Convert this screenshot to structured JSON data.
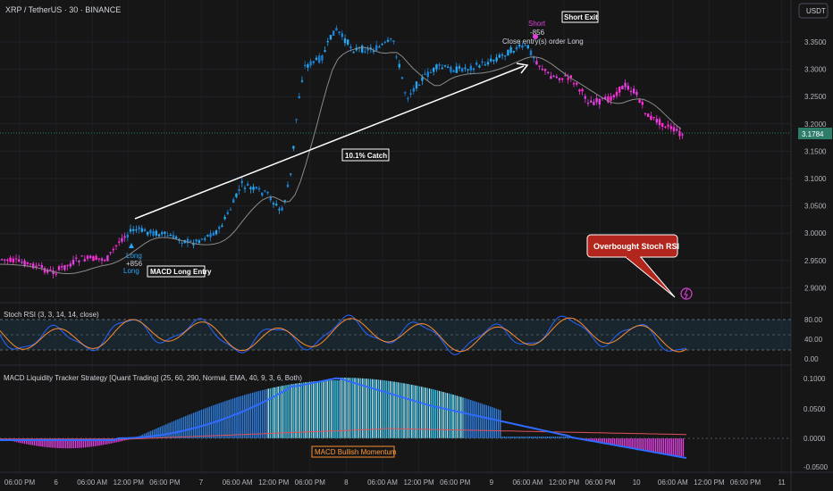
{
  "header": {
    "symbol_title": "XRP / TetherUS · 30 · BINANCE",
    "currency": "USDT"
  },
  "main_pane": {
    "y_ticks": [
      "3.3500",
      "3.3000",
      "3.2500",
      "3.2000",
      "3.1500",
      "3.1000",
      "3.0500",
      "3.0000",
      "2.9500",
      "2.9000"
    ],
    "last_price": "3.1784",
    "long_labels": {
      "line1": "Long",
      "line2": "+856",
      "line3": "Long"
    },
    "short_labels": {
      "line1": "Short",
      "line2": "-856"
    },
    "close_entry_text": "Close entry(s) order Long",
    "short_exit_label": "Short Exit",
    "macd_long_entry_label": "MACD Long Entry",
    "catch_label": "10.1% Catch",
    "overbought_callout": "Overbought Stoch RSI",
    "colors": {
      "bull_candle": "#26a6f2",
      "bear_candle": "#e040e0",
      "magenta_candle": "#ff2bd6",
      "callout": "#b3261e"
    }
  },
  "stoch_pane": {
    "title": "Stoch RSI (3, 3, 14, 14, close)",
    "y_ticks": [
      "80.00",
      "40.00",
      "0.00"
    ]
  },
  "macd_pane": {
    "title": "MACD Liquidity Tracker Strategy [Quant Trading] (25, 60, 290, Normal, EMA, 40, 9, 3, 6, Both)",
    "y_ticks": [
      "0.1000",
      "0.0500",
      "0.0000",
      "-0.0500"
    ],
    "momentum_label": "MACD Bullish Momentum"
  },
  "time_axis": {
    "ticks": [
      "06:00 PM",
      "6",
      "06:00 AM",
      "12:00 PM",
      "06:00 PM",
      "7",
      "06:00 AM",
      "12:00 PM",
      "06:00 PM",
      "8",
      "06:00 AM",
      "12:00 PM",
      "06:00 PM",
      "9",
      "06:00 AM",
      "12:00 PM",
      "06:00 PM",
      "10",
      "06:00 AM",
      "12:00 PM",
      "06:00 PM",
      "11"
    ]
  }
}
